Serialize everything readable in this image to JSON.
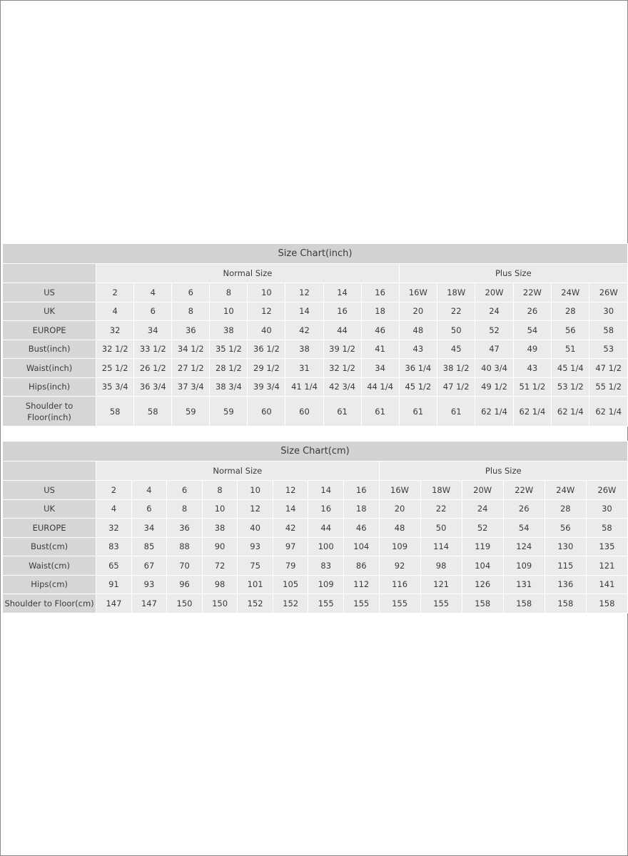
{
  "tables": [
    {
      "id": "inch",
      "title": "Size Chart(inch)",
      "groups": [
        {
          "label": "Normal Size",
          "span": 8
        },
        {
          "label": "Plus Size",
          "span": 6
        }
      ],
      "rows": [
        {
          "label": "US",
          "values": [
            "2",
            "4",
            "6",
            "8",
            "10",
            "12",
            "14",
            "16",
            "16W",
            "18W",
            "20W",
            "22W",
            "24W",
            "26W"
          ]
        },
        {
          "label": "UK",
          "values": [
            "4",
            "6",
            "8",
            "10",
            "12",
            "14",
            "16",
            "18",
            "20",
            "22",
            "24",
            "26",
            "28",
            "30"
          ]
        },
        {
          "label": "EUROPE",
          "values": [
            "32",
            "34",
            "36",
            "38",
            "40",
            "42",
            "44",
            "46",
            "48",
            "50",
            "52",
            "54",
            "56",
            "58"
          ]
        },
        {
          "label": "Bust(inch)",
          "values": [
            "32 1/2",
            "33 1/2",
            "34 1/2",
            "35 1/2",
            "36 1/2",
            "38",
            "39 1/2",
            "41",
            "43",
            "45",
            "47",
            "49",
            "51",
            "53"
          ]
        },
        {
          "label": "Waist(inch)",
          "values": [
            "25 1/2",
            "26 1/2",
            "27 1/2",
            "28 1/2",
            "29 1/2",
            "31",
            "32 1/2",
            "34",
            "36 1/4",
            "38 1/2",
            "40 3/4",
            "43",
            "45 1/4",
            "47 1/2"
          ]
        },
        {
          "label": "Hips(inch)",
          "values": [
            "35 3/4",
            "36 3/4",
            "37 3/4",
            "38 3/4",
            "39 3/4",
            "41 1/4",
            "42 3/4",
            "44 1/4",
            "45 1/2",
            "47 1/2",
            "49 1/2",
            "51 1/2",
            "53 1/2",
            "55 1/2"
          ]
        },
        {
          "label": "Shoulder to Floor(inch)",
          "label_lines": [
            "Shoulder to",
            "Floor(inch)"
          ],
          "values": [
            "58",
            "58",
            "59",
            "59",
            "60",
            "60",
            "61",
            "61",
            "61",
            "61",
            "62 1/4",
            "62 1/4",
            "62 1/4",
            "62 1/4"
          ]
        }
      ]
    },
    {
      "id": "cm",
      "title": "Size Chart(cm)",
      "groups": [
        {
          "label": "Normal Size",
          "span": 8
        },
        {
          "label": "Plus Size",
          "span": 6
        }
      ],
      "rows": [
        {
          "label": "US",
          "values": [
            "2",
            "4",
            "6",
            "8",
            "10",
            "12",
            "14",
            "16",
            "16W",
            "18W",
            "20W",
            "22W",
            "24W",
            "26W"
          ]
        },
        {
          "label": "UK",
          "values": [
            "4",
            "6",
            "8",
            "10",
            "12",
            "14",
            "16",
            "18",
            "20",
            "22",
            "24",
            "26",
            "28",
            "30"
          ]
        },
        {
          "label": "EUROPE",
          "values": [
            "32",
            "34",
            "36",
            "38",
            "40",
            "42",
            "44",
            "46",
            "48",
            "50",
            "52",
            "54",
            "56",
            "58"
          ]
        },
        {
          "label": "Bust(cm)",
          "values": [
            "83",
            "85",
            "88",
            "90",
            "93",
            "97",
            "100",
            "104",
            "109",
            "114",
            "119",
            "124",
            "130",
            "135"
          ]
        },
        {
          "label": "Waist(cm)",
          "values": [
            "65",
            "67",
            "70",
            "72",
            "75",
            "79",
            "83",
            "86",
            "92",
            "98",
            "104",
            "109",
            "115",
            "121"
          ]
        },
        {
          "label": "Hips(cm)",
          "values": [
            "91",
            "93",
            "96",
            "98",
            "101",
            "105",
            "109",
            "112",
            "116",
            "121",
            "126",
            "131",
            "136",
            "141"
          ]
        },
        {
          "label": "Shoulder to Floor(cm)",
          "values": [
            "147",
            "147",
            "150",
            "150",
            "152",
            "152",
            "155",
            "155",
            "155",
            "155",
            "158",
            "158",
            "158",
            "158"
          ]
        }
      ]
    }
  ]
}
